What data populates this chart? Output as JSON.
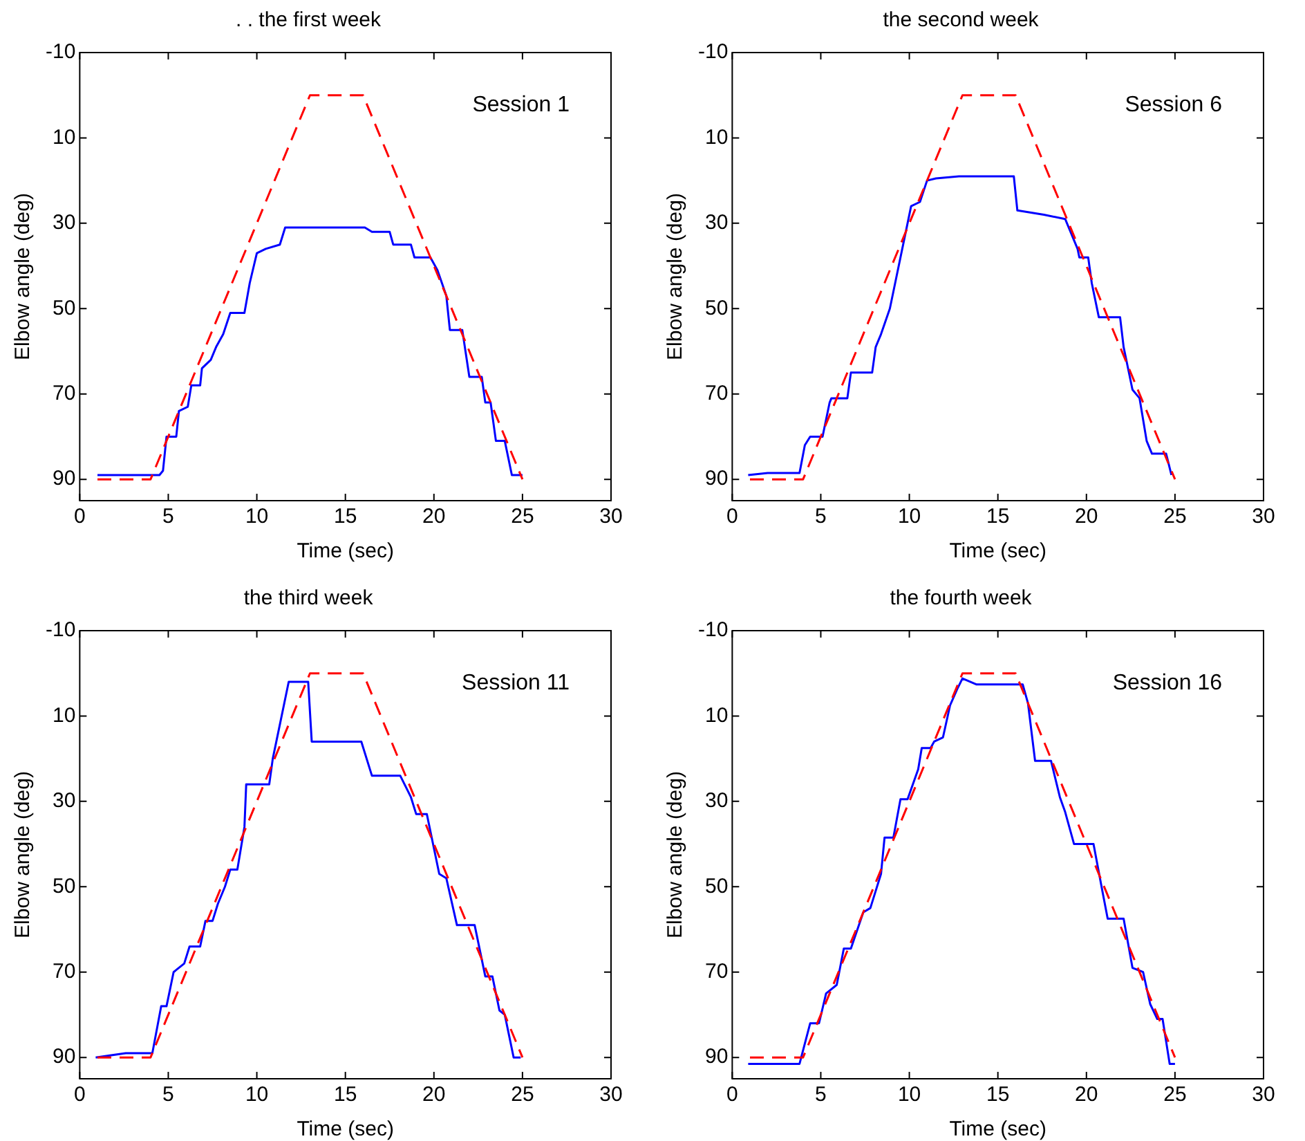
{
  "chart_data": [
    {
      "type": "line",
      "title": ". . the first week",
      "xlabel": "Time (sec)",
      "ylabel": "Elbow angle (deg)",
      "annotations": [
        "Session 1"
      ],
      "xlim": [
        0,
        30
      ],
      "xticks": [
        0,
        5,
        10,
        15,
        20,
        25,
        30
      ],
      "ylim": [
        95,
        -10
      ],
      "yticks": [
        -10,
        10,
        30,
        50,
        70,
        90
      ],
      "grid": false,
      "marker": "none",
      "series": [
        {
          "color": "#ff0000",
          "line_style": "dashed",
          "x": [
            1,
            4,
            13,
            16,
            25
          ],
          "values": [
            90,
            90,
            0,
            0,
            90
          ]
        },
        {
          "color": "#0000ff",
          "line_style": "solid",
          "x": [
            1,
            4.5,
            4.7,
            4.9,
            5.45,
            5.6,
            6.1,
            6.3,
            6.8,
            6.9,
            7.4,
            7.7,
            8.1,
            8.5,
            9.3,
            9.6,
            10,
            10.5,
            11.3,
            11.6,
            16.1,
            16.5,
            17.5,
            17.7,
            18.7,
            18.9,
            19.8,
            20.2,
            20.7,
            20.9,
            21.6,
            22,
            22.7,
            22.9,
            23.2,
            23.5,
            24,
            24.4,
            25
          ],
          "values": [
            89,
            89,
            88,
            80,
            80,
            74,
            73,
            68,
            68,
            64,
            62,
            59,
            56,
            51,
            51,
            44,
            37,
            36,
            35,
            31,
            31,
            32,
            32,
            35,
            35,
            38,
            38,
            41,
            47,
            55,
            55,
            66,
            66,
            72,
            72,
            81,
            81,
            89,
            89
          ]
        }
      ]
    },
    {
      "type": "line",
      "title": "the second week",
      "xlabel": "Time (sec)",
      "ylabel": "Elbow angle (deg)",
      "annotations": [
        "Session 6"
      ],
      "xlim": [
        0,
        30
      ],
      "xticks": [
        0,
        5,
        10,
        15,
        20,
        25,
        30
      ],
      "ylim": [
        95,
        -10
      ],
      "yticks": [
        -10,
        10,
        30,
        50,
        70,
        90
      ],
      "grid": false,
      "marker": "none",
      "series": [
        {
          "color": "#ff0000",
          "line_style": "dashed",
          "x": [
            1,
            4,
            13,
            16,
            25
          ],
          "values": [
            90,
            90,
            0,
            0,
            90
          ]
        },
        {
          "color": "#0000ff",
          "line_style": "solid",
          "x": [
            0.9,
            2,
            3.8,
            4.1,
            4.4,
            5.1,
            5.5,
            5.6,
            6.5,
            6.7,
            7.9,
            8.1,
            8.4,
            8.9,
            9.2,
            9.9,
            10.1,
            10.6,
            11,
            11.5,
            12.8,
            15.9,
            16.1,
            17.6,
            18.8,
            19.5,
            19.6,
            20.1,
            20.3,
            20.7,
            21.9,
            22.1,
            22.6,
            23,
            23.4,
            23.7,
            24.5,
            24.8
          ],
          "values": [
            89,
            88.5,
            88.5,
            82,
            80,
            80,
            72,
            71,
            71,
            65,
            65,
            59,
            56,
            50,
            44,
            30,
            26,
            25,
            20,
            19.5,
            19,
            19,
            27,
            28,
            29,
            36,
            38,
            38,
            44,
            52,
            52,
            59,
            69,
            71,
            81,
            84,
            84,
            89
          ]
        }
      ]
    },
    {
      "type": "line",
      "title": "the third week",
      "xlabel": "Time (sec)",
      "ylabel": "Elbow angle (deg)",
      "annotations": [
        "Session 11"
      ],
      "xlim": [
        0,
        30
      ],
      "xticks": [
        0,
        5,
        10,
        15,
        20,
        25,
        30
      ],
      "ylim": [
        95,
        -10
      ],
      "yticks": [
        -10,
        10,
        30,
        50,
        70,
        90
      ],
      "grid": false,
      "marker": "none",
      "series": [
        {
          "color": "#ff0000",
          "line_style": "dashed",
          "x": [
            1,
            4,
            13,
            16,
            25
          ],
          "values": [
            90,
            90,
            0,
            0,
            90
          ]
        },
        {
          "color": "#0000ff",
          "line_style": "solid",
          "x": [
            0.9,
            2.6,
            4.1,
            4.6,
            4.9,
            5.3,
            5.9,
            6.2,
            6.8,
            7.1,
            7.5,
            7.8,
            8.2,
            8.5,
            8.9,
            9.3,
            9.4,
            10.7,
            10.9,
            11.2,
            11.8,
            12.9,
            13.1,
            15.9,
            16.5,
            18.1,
            18.7,
            19,
            19.6,
            20.3,
            20.7,
            21.3,
            22.3,
            22.9,
            23.3,
            23.7,
            24,
            24.5,
            24.9
          ],
          "values": [
            90,
            89,
            89,
            78,
            78,
            70,
            68,
            64,
            64,
            58,
            58,
            54,
            50,
            46,
            46,
            36,
            26,
            26,
            20,
            14,
            2,
            2,
            16,
            16,
            24,
            24,
            29,
            33,
            33,
            47,
            48,
            59,
            59,
            71,
            71,
            79,
            80,
            90,
            90
          ]
        }
      ]
    },
    {
      "type": "line",
      "title": "the fourth week",
      "xlabel": "Time (sec)",
      "ylabel": "Elbow angle (deg)",
      "annotations": [
        "Session 16"
      ],
      "xlim": [
        0,
        30
      ],
      "xticks": [
        0,
        5,
        10,
        15,
        20,
        25,
        30
      ],
      "ylim": [
        95,
        -10
      ],
      "yticks": [
        -10,
        10,
        30,
        50,
        70,
        90
      ],
      "grid": false,
      "marker": "none",
      "series": [
        {
          "color": "#ff0000",
          "line_style": "dashed",
          "x": [
            1,
            4,
            13,
            16,
            25
          ],
          "values": [
            90,
            90,
            0,
            0,
            90
          ]
        },
        {
          "color": "#0000ff",
          "line_style": "solid",
          "x": [
            0.9,
            3.8,
            4.4,
            4.9,
            5.3,
            5.9,
            6.3,
            6.7,
            7.4,
            7.8,
            8.4,
            8.6,
            9.1,
            9.5,
            9.9,
            10.5,
            10.7,
            11.2,
            11.4,
            11.9,
            12.3,
            12.7,
            13,
            13.8,
            16.4,
            16.7,
            17.1,
            18,
            18.5,
            18.8,
            19.3,
            20.4,
            20.9,
            21.2,
            22.1,
            22.6,
            23.2,
            23.6,
            24,
            24.3,
            24.7,
            25
          ],
          "values": [
            91.5,
            91.5,
            82,
            82,
            75,
            73,
            64.5,
            64.5,
            56,
            55,
            47,
            38.5,
            38.5,
            29.5,
            29.5,
            22.5,
            17.5,
            17.5,
            16,
            15,
            7.5,
            3.7,
            1.2,
            2.6,
            2.6,
            7,
            20.5,
            20.5,
            29,
            32.5,
            40,
            40,
            51,
            57.5,
            57.5,
            69,
            70,
            77.5,
            81,
            81,
            91.5,
            91.5
          ]
        }
      ]
    }
  ]
}
